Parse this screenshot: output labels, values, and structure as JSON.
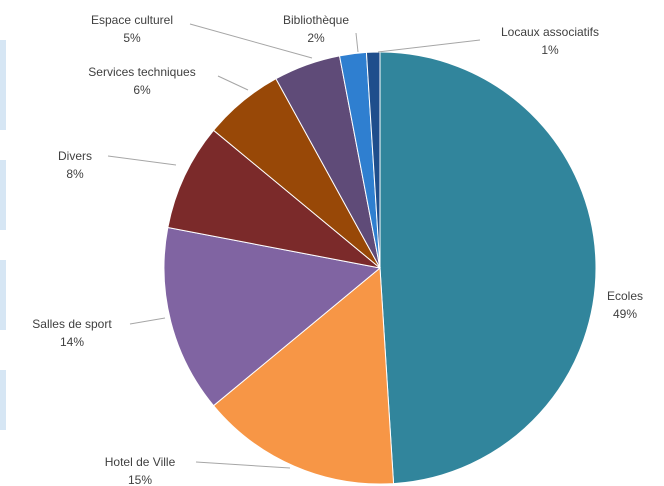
{
  "chart_data": {
    "type": "pie",
    "title": "",
    "start_angle_deg": 0,
    "direction": "clockwise",
    "slices": [
      {
        "name": "Ecoles",
        "value": 49,
        "label": "49%",
        "color": "#31859c"
      },
      {
        "name": "Hotel de Ville",
        "value": 15,
        "label": "15%",
        "color": "#f79646"
      },
      {
        "name": "Salles de sport",
        "value": 14,
        "label": "14%",
        "color": "#8064a2"
      },
      {
        "name": "Divers",
        "value": 8,
        "label": "8%",
        "color": "#7b2a2a"
      },
      {
        "name": "Services techniques",
        "value": 6,
        "label": "6%",
        "color": "#984807"
      },
      {
        "name": "Espace culturel",
        "value": 5,
        "label": "5%",
        "color": "#5f4b78"
      },
      {
        "name": "Bibliothèque",
        "value": 2,
        "label": "2%",
        "color": "#2f7fd0"
      },
      {
        "name": "Locaux associatifs",
        "value": 1,
        "label": "1%",
        "color": "#1f4e8c"
      }
    ],
    "legend": "none",
    "data_labels": "outside with leader lines"
  }
}
